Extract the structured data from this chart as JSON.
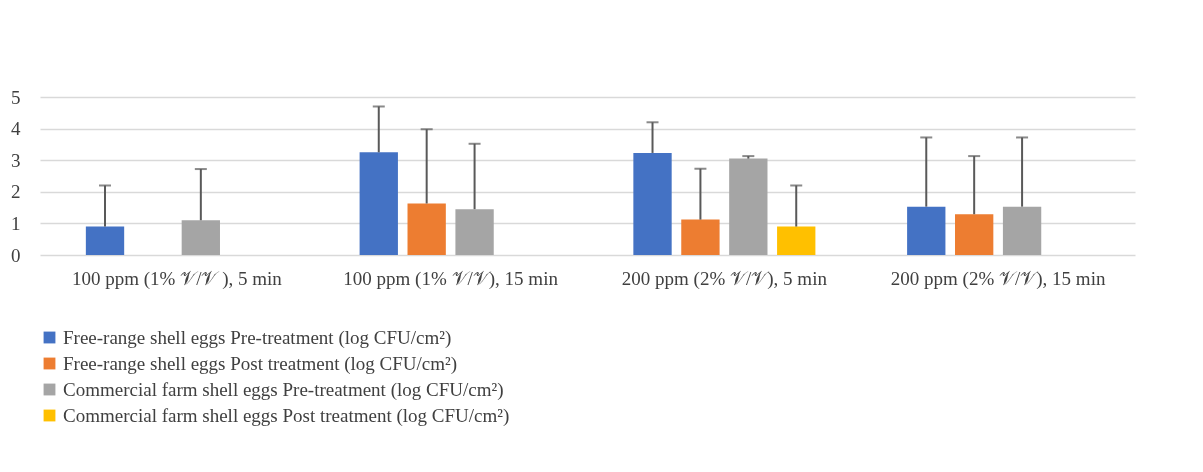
{
  "chart_data": {
    "type": "bar",
    "categories": [
      "100 ppm (1% 𝒱/𝒱 ), 5 min",
      "100 ppm (1% 𝒱/𝒱), 15 min",
      "200 ppm (2% 𝒱/𝒱), 5 min",
      "200 ppm (2% 𝒱/𝒱), 15 min"
    ],
    "series": [
      {
        "name": "Free-range shell eggs Pre-treatment (log CFU/cm²)",
        "color": "#4472c4",
        "values": [
          0.9,
          3.25,
          3.23,
          1.53
        ],
        "errors": [
          [
            0.9,
            2.2
          ],
          [
            3.25,
            4.7
          ],
          [
            3.23,
            4.2
          ],
          [
            1.53,
            3.72
          ]
        ]
      },
      {
        "name": "Free-range shell eggs Post treatment (log CFU/cm²)",
        "color": "#ed7d31",
        "values": [
          null,
          1.63,
          1.12,
          1.29
        ],
        "errors": [
          null,
          [
            1.63,
            3.98
          ],
          [
            1.12,
            2.73
          ],
          [
            1.29,
            3.13
          ]
        ]
      },
      {
        "name": "Commercial farm shell eggs Pre-treatment (log CFU/cm²)",
        "color": "#a5a5a5",
        "values": [
          1.1,
          1.45,
          3.05,
          1.53
        ],
        "errors": [
          [
            1.1,
            2.72
          ],
          [
            1.45,
            3.52
          ],
          [
            3.05,
            3.13
          ],
          [
            1.53,
            3.72
          ]
        ]
      },
      {
        "name": "Commercial farm shell eggs Post treatment (log CFU/cm²)",
        "color": "#ffc000",
        "values": [
          null,
          null,
          0.9,
          null
        ],
        "errors": [
          null,
          null,
          [
            0.9,
            2.2
          ],
          null
        ]
      }
    ],
    "ylim": [
      0,
      5
    ],
    "yticks": [
      0,
      1,
      2,
      3,
      4,
      5
    ],
    "grid": "y",
    "legend": "bottom"
  }
}
